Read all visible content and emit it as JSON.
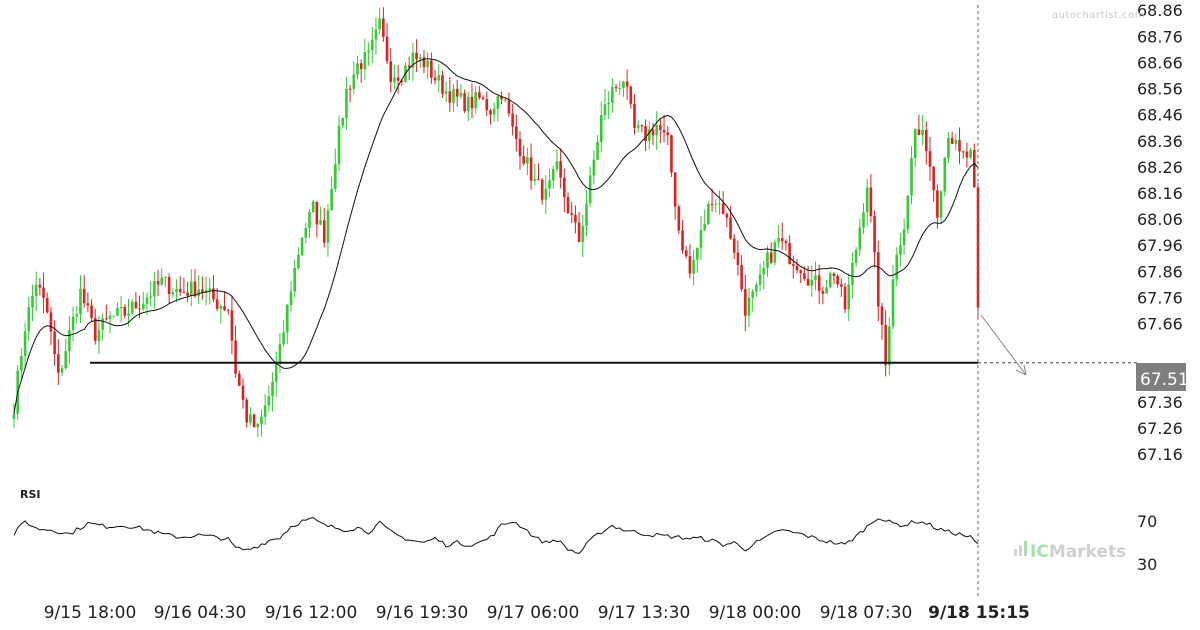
{
  "watermark": "autochartist.com",
  "brand": {
    "name": "IC Markets",
    "prefix": "IC",
    "suffix": "Markets"
  },
  "rsi_label": "RSI",
  "colors": {
    "up": "#33cc33",
    "down": "#e02020",
    "ma": "#111111",
    "support": "#111111",
    "price_tag_bg": "#7f7f7f"
  },
  "chart_data": {
    "type": "candlestick",
    "ylim": [
      67.08,
      68.88
    ],
    "y_ticks": [
      68.86,
      68.76,
      68.66,
      68.56,
      68.46,
      68.36,
      68.26,
      68.16,
      68.06,
      67.96,
      67.86,
      67.76,
      67.66,
      67.46,
      67.36,
      67.26,
      67.16
    ],
    "x_labels": [
      "9/15 18:00",
      "9/16 04:30",
      "9/16 12:00",
      "9/16 19:30",
      "9/17 06:00",
      "9/17 13:30",
      "9/18 00:00",
      "9/18 07:30"
    ],
    "current_time_label": "9/18 15:15",
    "support_level": 67.51,
    "current_price_label": "67.51",
    "current_price": 67.51,
    "rsi": {
      "ylim": [
        20,
        85
      ],
      "ticks": [
        70,
        30
      ]
    },
    "anchors": [
      [
        0,
        67.35
      ],
      [
        3,
        67.65
      ],
      [
        6,
        67.82
      ],
      [
        9,
        67.7
      ],
      [
        12,
        67.45
      ],
      [
        15,
        67.62
      ],
      [
        18,
        67.78
      ],
      [
        22,
        67.62
      ],
      [
        26,
        67.68
      ],
      [
        30,
        67.7
      ],
      [
        35,
        67.75
      ],
      [
        40,
        67.82
      ],
      [
        45,
        67.78
      ],
      [
        50,
        67.8
      ],
      [
        55,
        67.74
      ],
      [
        58,
        67.72
      ],
      [
        60,
        67.48
      ],
      [
        63,
        67.3
      ],
      [
        66,
        67.25
      ],
      [
        69,
        67.38
      ],
      [
        72,
        67.55
      ],
      [
        75,
        67.8
      ],
      [
        78,
        68.0
      ],
      [
        81,
        68.1
      ],
      [
        84,
        68.0
      ],
      [
        87,
        68.3
      ],
      [
        90,
        68.55
      ],
      [
        93,
        68.65
      ],
      [
        96,
        68.68
      ],
      [
        99,
        68.8
      ],
      [
        102,
        68.62
      ],
      [
        105,
        68.62
      ],
      [
        108,
        68.68
      ],
      [
        111,
        68.66
      ],
      [
        114,
        68.6
      ],
      [
        117,
        68.55
      ],
      [
        120,
        68.52
      ],
      [
        123,
        68.5
      ],
      [
        126,
        68.52
      ],
      [
        129,
        68.48
      ],
      [
        132,
        68.55
      ],
      [
        135,
        68.4
      ],
      [
        138,
        68.3
      ],
      [
        141,
        68.2
      ],
      [
        144,
        68.15
      ],
      [
        147,
        68.25
      ],
      [
        150,
        68.1
      ],
      [
        153,
        67.98
      ],
      [
        156,
        68.2
      ],
      [
        159,
        68.45
      ],
      [
        162,
        68.55
      ],
      [
        165,
        68.6
      ],
      [
        168,
        68.4
      ],
      [
        171,
        68.38
      ],
      [
        174,
        68.42
      ],
      [
        177,
        68.35
      ],
      [
        180,
        68.02
      ],
      [
        183,
        67.85
      ],
      [
        186,
        68.0
      ],
      [
        189,
        68.15
      ],
      [
        192,
        68.1
      ],
      [
        195,
        67.95
      ],
      [
        198,
        67.72
      ],
      [
        201,
        67.78
      ],
      [
        204,
        67.9
      ],
      [
        207,
        67.98
      ],
      [
        210,
        67.92
      ],
      [
        213,
        67.88
      ],
      [
        216,
        67.82
      ],
      [
        219,
        67.8
      ],
      [
        222,
        67.86
      ],
      [
        225,
        67.72
      ],
      [
        228,
        67.95
      ],
      [
        231,
        68.2
      ],
      [
        234,
        67.75
      ],
      [
        236,
        67.5
      ],
      [
        238,
        67.85
      ],
      [
        241,
        68.05
      ],
      [
        244,
        68.4
      ],
      [
        247,
        68.35
      ],
      [
        250,
        68.1
      ],
      [
        253,
        68.4
      ],
      [
        256,
        68.3
      ],
      [
        259,
        68.3
      ],
      [
        260,
        68.15
      ],
      [
        261,
        67.7
      ]
    ],
    "rsi_anchors": [
      [
        0,
        58
      ],
      [
        3,
        70
      ],
      [
        6,
        63
      ],
      [
        10,
        62
      ],
      [
        15,
        58
      ],
      [
        20,
        68
      ],
      [
        25,
        65
      ],
      [
        30,
        66
      ],
      [
        35,
        63
      ],
      [
        40,
        58
      ],
      [
        45,
        55
      ],
      [
        50,
        57
      ],
      [
        55,
        55
      ],
      [
        58,
        53
      ],
      [
        60,
        45
      ],
      [
        63,
        43
      ],
      [
        66,
        47
      ],
      [
        69,
        52
      ],
      [
        72,
        55
      ],
      [
        75,
        65
      ],
      [
        78,
        70
      ],
      [
        81,
        72
      ],
      [
        84,
        66
      ],
      [
        87,
        64
      ],
      [
        90,
        62
      ],
      [
        93,
        64
      ],
      [
        96,
        60
      ],
      [
        99,
        68
      ],
      [
        102,
        60
      ],
      [
        105,
        55
      ],
      [
        108,
        52
      ],
      [
        111,
        50
      ],
      [
        114,
        54
      ],
      [
        117,
        48
      ],
      [
        120,
        50
      ],
      [
        123,
        48
      ],
      [
        126,
        50
      ],
      [
        129,
        55
      ],
      [
        132,
        66
      ],
      [
        135,
        70
      ],
      [
        138,
        64
      ],
      [
        141,
        55
      ],
      [
        144,
        50
      ],
      [
        147,
        53
      ],
      [
        150,
        44
      ],
      [
        153,
        40
      ],
      [
        156,
        52
      ],
      [
        159,
        60
      ],
      [
        162,
        66
      ],
      [
        165,
        62
      ],
      [
        168,
        60
      ],
      [
        171,
        58
      ],
      [
        174,
        57
      ],
      [
        177,
        56
      ],
      [
        180,
        55
      ],
      [
        183,
        54
      ],
      [
        186,
        54
      ],
      [
        189,
        52
      ],
      [
        192,
        48
      ],
      [
        195,
        50
      ],
      [
        198,
        44
      ],
      [
        201,
        50
      ],
      [
        204,
        55
      ],
      [
        207,
        62
      ],
      [
        210,
        60
      ],
      [
        213,
        58
      ],
      [
        216,
        55
      ],
      [
        219,
        52
      ],
      [
        222,
        50
      ],
      [
        225,
        48
      ],
      [
        228,
        56
      ],
      [
        231,
        65
      ],
      [
        234,
        74
      ],
      [
        236,
        70
      ],
      [
        238,
        68
      ],
      [
        241,
        66
      ],
      [
        244,
        70
      ],
      [
        247,
        68
      ],
      [
        250,
        63
      ],
      [
        253,
        60
      ],
      [
        256,
        58
      ],
      [
        259,
        55
      ],
      [
        261,
        48
      ]
    ]
  }
}
